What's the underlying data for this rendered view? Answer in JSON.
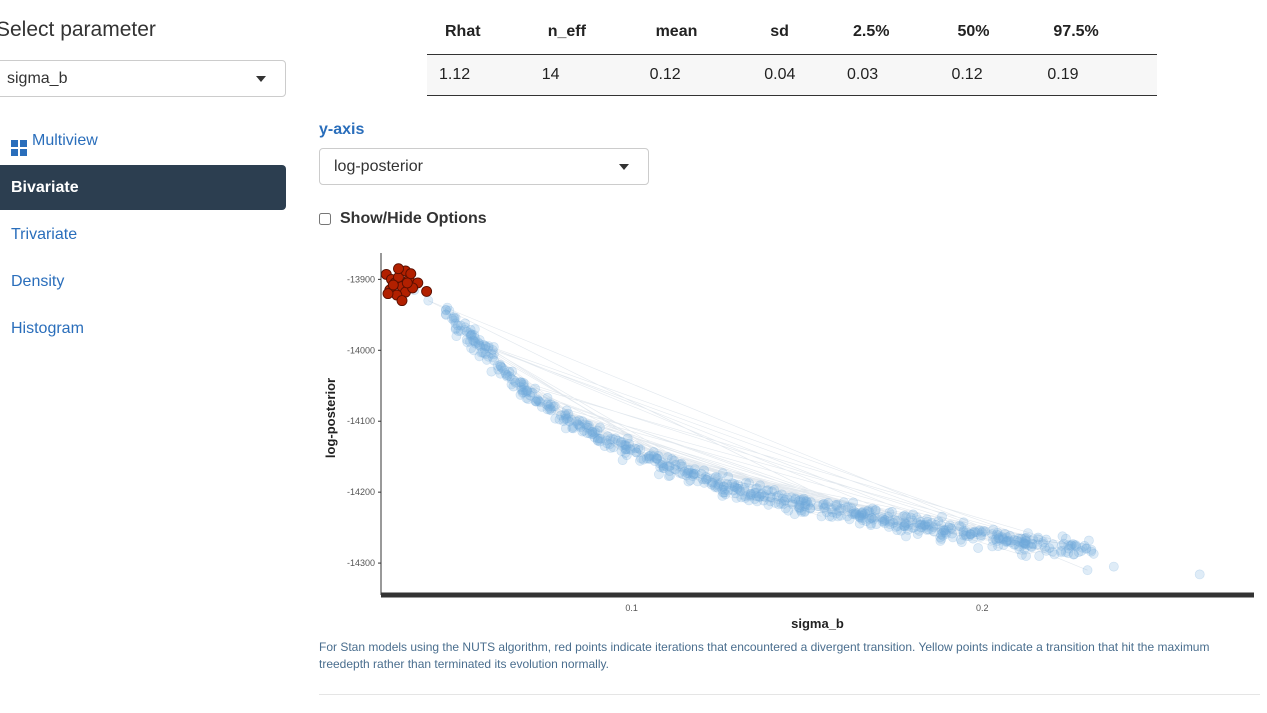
{
  "sidebar": {
    "title": "Select parameter",
    "parameter": "sigma_b",
    "nav": [
      {
        "label": "Multiview",
        "icon": "grid-icon",
        "active": false
      },
      {
        "label": "Bivariate",
        "active": true
      },
      {
        "label": "Trivariate",
        "active": false
      },
      {
        "label": "Density",
        "active": false
      },
      {
        "label": "Histogram",
        "active": false
      }
    ]
  },
  "stats": {
    "headers": [
      "Rhat",
      "n_eff",
      "mean",
      "sd",
      "2.5%",
      "50%",
      "97.5%"
    ],
    "values": [
      "1.12",
      "14",
      "0.12",
      "0.04",
      "0.03",
      "0.12",
      "0.19"
    ]
  },
  "yaxis": {
    "label": "y-axis",
    "selected": "log-posterior"
  },
  "options_label": "Show/Hide Options",
  "note": "For Stan models using the NUTS algorithm, red points indicate iterations that encountered a divergent transition. Yellow points indicate a transition that hit the maximum treedepth rather than terminated its evolution normally.",
  "colors": {
    "accent": "#2a6ebb",
    "active_nav": "#2c3e50",
    "point_fill": "#6fa8dc",
    "divergent": "#b22000"
  },
  "chart_data": {
    "type": "scatter",
    "title": "",
    "xlabel": "sigma_b",
    "ylabel": "log-posterior",
    "xlim": [
      0.0285,
      0.2775
    ],
    "ylim": [
      -14345,
      -13860
    ],
    "x_ticks": [
      0.1,
      0.2
    ],
    "x_tick_labels": [
      "0.1",
      "0.2"
    ],
    "y_ticks": [
      -13900,
      -14000,
      -14100,
      -14200,
      -14300
    ],
    "y_tick_labels": [
      "-13900",
      "-14000",
      "-14100",
      "-14200",
      "-14300"
    ],
    "series": [
      {
        "name": "",
        "color": "#6fa8dc",
        "trend": {
          "x": [
            0.045,
            0.06,
            0.07,
            0.09,
            0.11,
            0.13,
            0.15,
            0.17,
            0.19,
            0.21,
            0.235
          ],
          "y": [
            -13935,
            -14010,
            -14060,
            -14120,
            -14165,
            -14195,
            -14218,
            -14237,
            -14253,
            -14268,
            -14285
          ]
        },
        "points": [
          [
            0.038,
            -13915
          ],
          [
            0.042,
            -13930
          ],
          [
            0.047,
            -13950
          ],
          [
            0.05,
            -13980
          ],
          [
            0.055,
            -14000
          ],
          [
            0.06,
            -14030
          ],
          [
            0.2125,
            -14290
          ],
          [
            0.2225,
            -14285
          ],
          [
            0.23,
            -14310
          ],
          [
            0.2375,
            -14305
          ],
          [
            0.262,
            -14316
          ]
        ]
      },
      {
        "name": "",
        "color": "#b22000",
        "points": [
          [
            0.03,
            -13893
          ],
          [
            0.0315,
            -13900
          ],
          [
            0.0325,
            -13905
          ],
          [
            0.0335,
            -13897
          ],
          [
            0.0345,
            -13910
          ],
          [
            0.0355,
            -13918
          ],
          [
            0.0365,
            -13900
          ],
          [
            0.031,
            -13915
          ],
          [
            0.033,
            -13922
          ],
          [
            0.0355,
            -13888
          ],
          [
            0.037,
            -13892
          ],
          [
            0.0345,
            -13930
          ],
          [
            0.039,
            -13905
          ],
          [
            0.0335,
            -13885
          ],
          [
            0.0375,
            -13912
          ],
          [
            0.032,
            -13908
          ],
          [
            0.036,
            -13905
          ],
          [
            0.0305,
            -13920
          ],
          [
            0.0415,
            -13917
          ]
        ]
      }
    ],
    "grid": false,
    "legend": "none"
  }
}
